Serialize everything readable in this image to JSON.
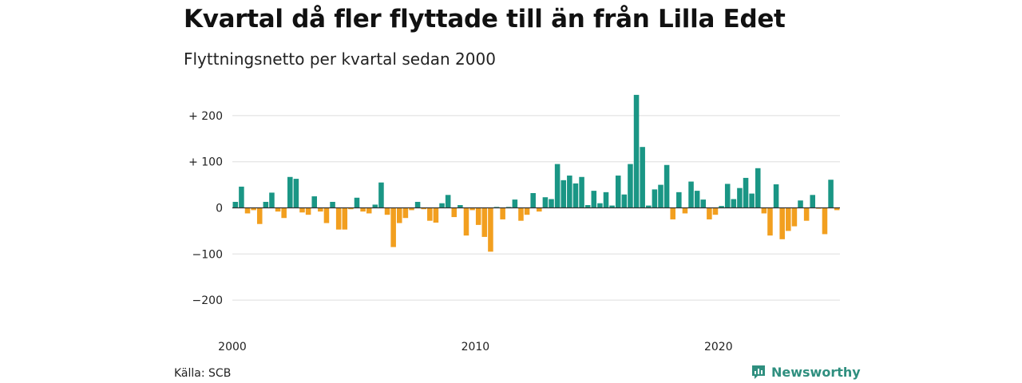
{
  "chart_data": {
    "type": "bar",
    "title": "Kvartal då fler flyttade till än från Lilla Edet",
    "subtitle": "Flyttningsnetto per kvartal sedan 2000",
    "x_start": "2000 Q1",
    "x_ticks": [
      "2000",
      "2010",
      "2020"
    ],
    "ylim": [
      -250,
      250
    ],
    "y_ticks": [
      {
        "value": 200,
        "label": "+ 200"
      },
      {
        "value": 100,
        "label": "+ 100"
      },
      {
        "value": 0,
        "label": "0"
      },
      {
        "value": -100,
        "label": "−100"
      },
      {
        "value": -200,
        "label": "−200"
      }
    ],
    "grid": true,
    "colors": {
      "positive": "#1a9685",
      "negative": "#f29f1f",
      "grid": "#dddddd",
      "axis": "#333333"
    },
    "values": [
      13,
      46,
      -12,
      -5,
      -35,
      13,
      33,
      -8,
      -22,
      67,
      63,
      -10,
      -15,
      25,
      -8,
      -33,
      13,
      -47,
      -47,
      -3,
      22,
      -8,
      -12,
      7,
      55,
      -15,
      -85,
      -33,
      -22,
      -5,
      13,
      -3,
      -28,
      -32,
      10,
      28,
      -20,
      6,
      -60,
      -5,
      -37,
      -63,
      -95,
      2,
      -25,
      2,
      18,
      -28,
      -15,
      32,
      -8,
      23,
      19,
      95,
      60,
      70,
      53,
      67,
      6,
      37,
      10,
      34,
      5,
      70,
      29,
      95,
      245,
      132,
      5,
      40,
      50,
      93,
      -25,
      34,
      -12,
      57,
      37,
      18,
      -25,
      -15,
      4,
      52,
      19,
      43,
      65,
      31,
      86,
      -12,
      -60,
      51,
      -68,
      -50,
      -40,
      16,
      -28,
      28,
      -2,
      -57,
      61,
      -5
    ]
  },
  "footer": {
    "source": "Källa: SCB",
    "brand": "Newsworthy",
    "brand_icon": "newsworthy-logo-icon"
  }
}
